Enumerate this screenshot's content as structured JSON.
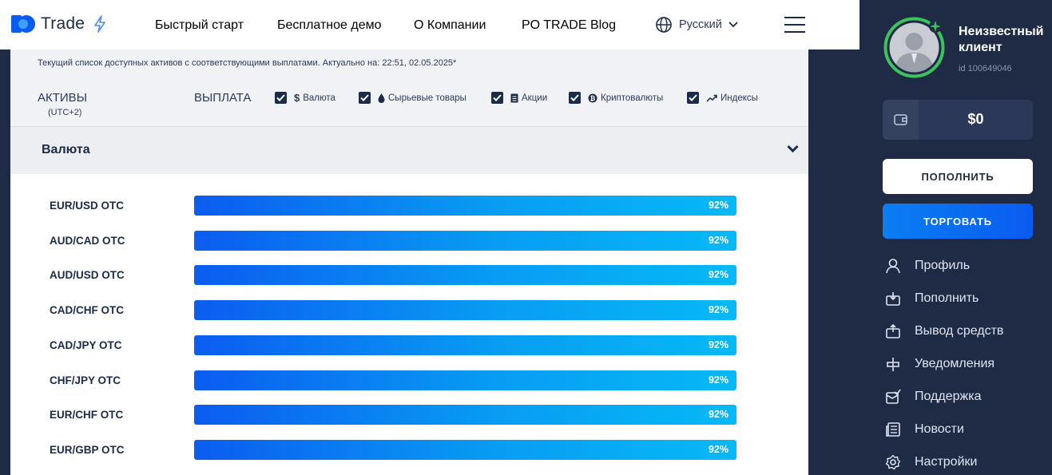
{
  "header": {
    "logo_text": "Trade",
    "nav": [
      "Быстрый старт",
      "Бесплатное демо",
      "О Компании",
      "PO TRADE Blog"
    ],
    "language": "Русский"
  },
  "info": {
    "notice": "Текущий список доступных активов с соответствующими выплатами. Актуально на: 22:51, 02.05.2025*",
    "col_assets": "АКТИВЫ",
    "col_tz": "(UTC+2)",
    "col_payout": "ВЫПЛАТА"
  },
  "filters": [
    {
      "label": "Валюта",
      "checked": true,
      "icon": "dollar-icon"
    },
    {
      "label": "Сырьевые товары",
      "checked": true,
      "icon": "drop-icon"
    },
    {
      "label": "Акции",
      "checked": true,
      "icon": "document-icon"
    },
    {
      "label": "Криптовалюты",
      "checked": true,
      "icon": "coin-icon"
    },
    {
      "label": "Индексы",
      "checked": true,
      "icon": "trend-icon"
    }
  ],
  "section": {
    "title": "Валюта"
  },
  "assets": [
    {
      "pair": "EUR/USD OTC",
      "payout": "92%",
      "payout_value": 92
    },
    {
      "pair": "AUD/CAD OTC",
      "payout": "92%",
      "payout_value": 92
    },
    {
      "pair": "AUD/USD OTC",
      "payout": "92%",
      "payout_value": 92
    },
    {
      "pair": "CAD/CHF OTC",
      "payout": "92%",
      "payout_value": 92
    },
    {
      "pair": "CAD/JPY OTC",
      "payout": "92%",
      "payout_value": 92
    },
    {
      "pair": "CHF/JPY OTC",
      "payout": "92%",
      "payout_value": 92
    },
    {
      "pair": "EUR/CHF OTC",
      "payout": "92%",
      "payout_value": 92
    },
    {
      "pair": "EUR/GBP OTC",
      "payout": "92%",
      "payout_value": 92
    }
  ],
  "sidebar": {
    "user_name_line1": "Неизвестный",
    "user_name_line2": "клиент",
    "user_id": "id 100649046",
    "balance": "$0",
    "deposit_button": "ПОПОЛНИТЬ",
    "trade_button": "ТОРГОВАТЬ",
    "menu": [
      {
        "label": "Профиль",
        "icon": "user-icon"
      },
      {
        "label": "Пополнить",
        "icon": "deposit-icon"
      },
      {
        "label": "Вывод средств",
        "icon": "withdraw-icon"
      },
      {
        "label": "Уведомления",
        "icon": "notification-icon"
      },
      {
        "label": "Поддержка",
        "icon": "support-icon"
      },
      {
        "label": "Новости",
        "icon": "news-icon"
      },
      {
        "label": "Настройки",
        "icon": "settings-icon"
      }
    ]
  },
  "colors": {
    "brand_blue": "#0a5bf0",
    "bar_start": "#0b5cf0",
    "bar_end": "#06b9f6",
    "sidebar_bg": "#1f2a45",
    "avatar_ring": "#3cc45c"
  }
}
